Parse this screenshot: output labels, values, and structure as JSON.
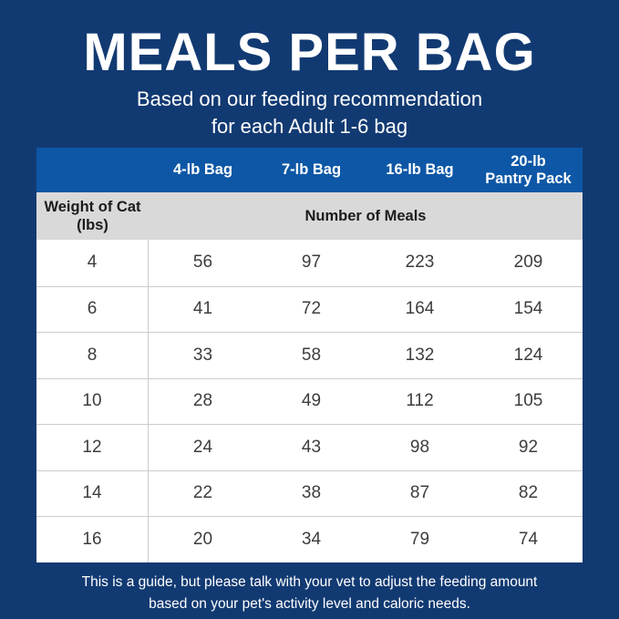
{
  "header": {
    "title": "MEALS PER BAG",
    "subtitle_line1": "Based on our feeding recommendation",
    "subtitle_line2": "for each Adult 1-6 bag"
  },
  "table": {
    "bag_headers": [
      {
        "label": "4-lb Bag",
        "lines": [
          "4-lb Bag"
        ]
      },
      {
        "label": "7-lb Bag",
        "lines": [
          "7-lb Bag"
        ]
      },
      {
        "label": "16-lb Bag",
        "lines": [
          "16-lb Bag"
        ]
      },
      {
        "label": "20-lb Pantry Pack",
        "lines": [
          "20-lb",
          "Pantry Pack"
        ]
      }
    ],
    "weight_header_line1": "Weight of Cat",
    "weight_header_line2": "(lbs)",
    "meals_header": "Number of Meals",
    "rows": [
      {
        "weight": "4",
        "values": [
          "56",
          "97",
          "223",
          "209"
        ]
      },
      {
        "weight": "6",
        "values": [
          "41",
          "72",
          "164",
          "154"
        ]
      },
      {
        "weight": "8",
        "values": [
          "33",
          "58",
          "132",
          "124"
        ]
      },
      {
        "weight": "10",
        "values": [
          "28",
          "49",
          "112",
          "105"
        ]
      },
      {
        "weight": "12",
        "values": [
          "24",
          "43",
          "98",
          "92"
        ]
      },
      {
        "weight": "14",
        "values": [
          "22",
          "38",
          "87",
          "82"
        ]
      },
      {
        "weight": "16",
        "values": [
          "20",
          "34",
          "79",
          "74"
        ]
      }
    ]
  },
  "footer": {
    "line1": "This is a guide, but please talk with your vet to adjust the feeding amount",
    "line2": "based on your pet's activity level and caloric needs."
  },
  "colors": {
    "page_background": "#123a72",
    "header_row_blue": "#0d57a6",
    "subheader_gray": "#d9d9d9",
    "row_divider": "#cccccc",
    "data_text": "#3d3d3d",
    "subheader_text": "#1b1b1b",
    "white_text": "#ffffff"
  },
  "chart_data": {
    "type": "table",
    "title": "MEALS PER BAG",
    "subtitle": "Based on our feeding recommendation for each Adult 1-6 bag",
    "columns": [
      "Weight of Cat (lbs)",
      "4-lb Bag",
      "7-lb Bag",
      "16-lb Bag",
      "20-lb Pantry Pack"
    ],
    "group_header": "Number of Meals",
    "rows": [
      [
        4,
        56,
        97,
        223,
        209
      ],
      [
        6,
        41,
        72,
        164,
        154
      ],
      [
        8,
        33,
        58,
        132,
        124
      ],
      [
        10,
        28,
        49,
        112,
        105
      ],
      [
        12,
        24,
        43,
        98,
        92
      ],
      [
        14,
        22,
        38,
        87,
        82
      ],
      [
        16,
        20,
        34,
        79,
        74
      ]
    ],
    "note": "This is a guide, but please talk with your vet to adjust the feeding amount based on your pet's activity level and caloric needs."
  }
}
